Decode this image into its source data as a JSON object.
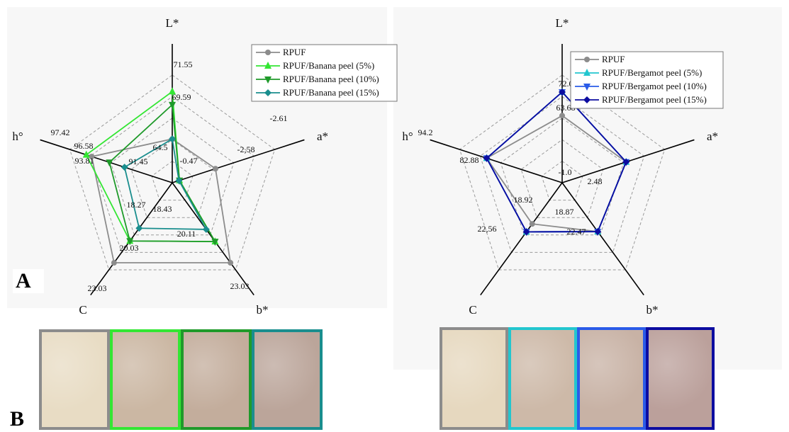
{
  "colors": {
    "rpuf": "#8c8c8c",
    "banana_5": "#33e633",
    "banana_10": "#1f9a2a",
    "banana_15": "#1a8e8e",
    "bergamot_5": "#22c6cf",
    "bergamot_10": "#2a5be8",
    "bergamot_15": "#0c0ca0"
  },
  "panel_labels": {
    "a": "A",
    "b": "B"
  },
  "chart_data": [
    {
      "type": "radar",
      "axes": [
        "L*",
        "a*",
        "b*",
        "C",
        "h°"
      ],
      "grid": true,
      "grid_rings": 5,
      "legend_position": "top-right",
      "series": [
        {
          "name": "RPUF",
          "marker": "circle",
          "values": [
            64.5,
            -0.47,
            23.03,
            23.03,
            96.58
          ]
        },
        {
          "name": "RPUF/Banana peel (5%)",
          "marker": "triangle-up",
          "values": [
            71.55,
            -2.58,
            20.11,
            20.03,
            97.42
          ]
        },
        {
          "name": "RPUF/Banana peel (10%)",
          "marker": "triangle-down",
          "values": [
            69.59,
            -2.58,
            20.11,
            20.03,
            93.81
          ]
        },
        {
          "name": "RPUF/Banana peel (15%)",
          "marker": "diamond",
          "values": [
            64.5,
            -2.61,
            18.43,
            18.27,
            91.45
          ]
        }
      ],
      "annotations": [
        "71.55",
        "69.59",
        "64.5",
        "97.42",
        "96.58",
        "93.81",
        "91.45",
        "-2.61",
        "-0.47",
        "-2,58",
        "18.27",
        "18.43",
        "20.11",
        "20.03",
        "23.03",
        "23.03"
      ]
    },
    {
      "type": "radar",
      "axes": [
        "L*",
        "a*",
        "b*",
        "C",
        "h°"
      ],
      "grid": true,
      "grid_rings": 5,
      "legend_position": "top-right",
      "series": [
        {
          "name": "RPUF",
          "marker": "circle",
          "values": [
            63.68,
            2.48,
            22.47,
            18.92,
            94.2
          ]
        },
        {
          "name": "RPUF/Bergamot peel (5%)",
          "marker": "triangle-up",
          "values": [
            72.0,
            2.48,
            22.47,
            22.56,
            94.2
          ]
        },
        {
          "name": "RPUF/Bergamot peel (10%)",
          "marker": "triangle-down",
          "values": [
            72.0,
            2.48,
            22.47,
            22.56,
            94.2
          ]
        },
        {
          "name": "RPUF/Bergamot peel (15%)",
          "marker": "diamond",
          "values": [
            72.0,
            2.48,
            22.47,
            22.56,
            94.2
          ]
        }
      ],
      "annotations": [
        "72.0",
        "63.68",
        "94.2",
        "82.88",
        "-1.0",
        "2.48",
        "18.92",
        "18.87",
        "22,56",
        "22.47"
      ]
    }
  ],
  "swatch_groups": [
    {
      "name": "banana",
      "count": 4
    },
    {
      "name": "bergamot",
      "count": 4
    }
  ]
}
